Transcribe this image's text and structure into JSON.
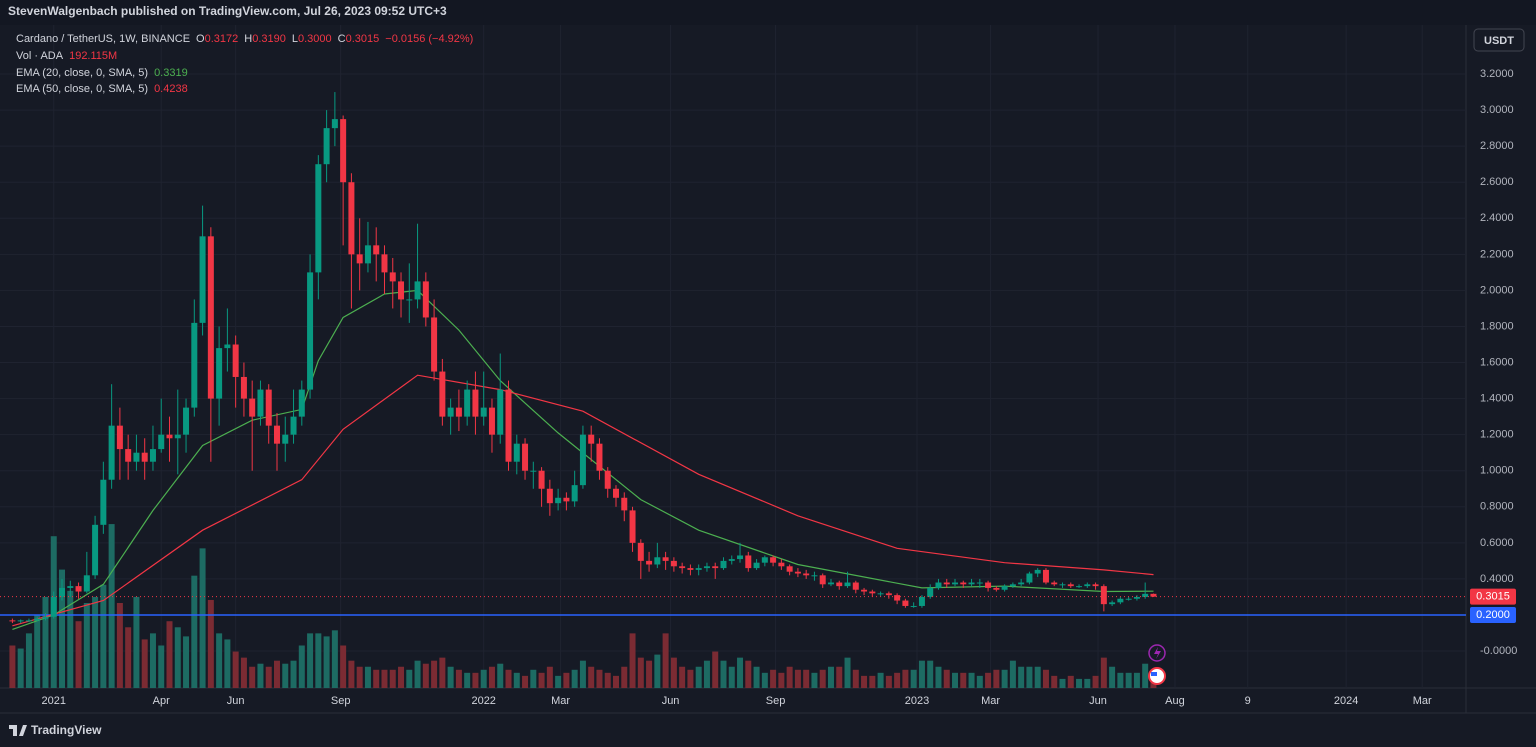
{
  "header": {
    "publisher": "StevenWalgenbach published on TradingView.com, Jul 26, 2023 09:52 UTC+3",
    "currency_button": "USDT",
    "footer_logo": "TradingView"
  },
  "chart_data": {
    "type": "candlestick",
    "legend": {
      "symbol": "Cardano / TetherUS, 1W, BINANCE",
      "ohlc": [
        {
          "key": "O",
          "value": "0.3172"
        },
        {
          "key": "H",
          "value": "0.3190"
        },
        {
          "key": "L",
          "value": "0.3000"
        },
        {
          "key": "C",
          "value": "0.3015"
        }
      ],
      "change": "−0.0156 (−4.92%)"
    },
    "up_color": "#089981",
    "down_color": "#f23645",
    "xlim": [
      -1.5,
      175.8
    ],
    "xticks": [
      {
        "value": 5,
        "label": "2021"
      },
      {
        "value": 18,
        "label": "Apr"
      },
      {
        "value": 27,
        "label": "Jun"
      },
      {
        "value": 39.7,
        "label": "Sep"
      },
      {
        "value": 57,
        "label": "2022"
      },
      {
        "value": 66.3,
        "label": "Mar"
      },
      {
        "value": 79.6,
        "label": "Jun"
      },
      {
        "value": 92.3,
        "label": "Sep"
      },
      {
        "value": 109.4,
        "label": "2023"
      },
      {
        "value": 118.3,
        "label": "Mar"
      },
      {
        "value": 131.3,
        "label": "Jun"
      },
      {
        "value": 140.6,
        "label": "Aug"
      },
      {
        "value": 149.4,
        "label": "9"
      },
      {
        "value": 161.3,
        "label": "2024"
      },
      {
        "value": 170.5,
        "label": "Mar"
      }
    ],
    "ylim": [
      -0.205,
      3.472
    ],
    "yticks": [
      {
        "value": 3.2,
        "label": "3.2000"
      },
      {
        "value": 3.0,
        "label": "3.0000"
      },
      {
        "value": 2.8,
        "label": "2.8000"
      },
      {
        "value": 2.6,
        "label": "2.6000"
      },
      {
        "value": 2.4,
        "label": "2.4000"
      },
      {
        "value": 2.2,
        "label": "2.2000"
      },
      {
        "value": 2.0,
        "label": "2.0000"
      },
      {
        "value": 1.8,
        "label": "1.8000"
      },
      {
        "value": 1.6,
        "label": "1.6000"
      },
      {
        "value": 1.4,
        "label": "1.4000"
      },
      {
        "value": 1.2,
        "label": "1.2000"
      },
      {
        "value": 1.0,
        "label": "1.0000"
      },
      {
        "value": 0.8,
        "label": "0.8000"
      },
      {
        "value": 0.6,
        "label": "0.6000"
      },
      {
        "value": 0.4,
        "label": "0.4000"
      },
      {
        "value": 0,
        "label": "-0.0000"
      }
    ],
    "grid": true,
    "hline": {
      "value": 0.2,
      "label": "0.2000",
      "color": "#2962ff"
    },
    "candles": {
      "open": [
        0.17,
        0.165,
        0.17,
        0.17,
        0.18,
        0.19,
        0.3,
        0.35,
        0.36,
        0.33,
        0.42,
        0.7,
        0.95,
        1.25,
        1.12,
        1.05,
        1.1,
        1.05,
        1.12,
        1.2,
        1.18,
        1.2,
        1.35,
        1.82,
        2.3,
        1.4,
        1.68,
        1.7,
        1.52,
        1.4,
        1.3,
        1.45,
        1.25,
        1.15,
        1.2,
        1.3,
        1.45,
        2.1,
        2.7,
        2.9,
        2.95,
        2.6,
        2.2,
        2.15,
        2.25,
        2.2,
        2.1,
        2.05,
        1.95,
        1.95,
        2.05,
        1.85,
        1.55,
        1.3,
        1.35,
        1.3,
        1.45,
        1.3,
        1.35,
        1.2,
        1.45,
        1.05,
        1.15,
        1.0,
        1.0,
        0.9,
        0.82,
        0.85,
        0.83,
        0.92,
        1.2,
        1.15,
        1.0,
        0.9,
        0.85,
        0.78,
        0.6,
        0.5,
        0.48,
        0.52,
        0.5,
        0.47,
        0.46,
        0.45,
        0.46,
        0.47,
        0.46,
        0.5,
        0.51,
        0.53,
        0.46,
        0.49,
        0.52,
        0.49,
        0.47,
        0.44,
        0.43,
        0.42,
        0.42,
        0.37,
        0.38,
        0.36,
        0.38,
        0.34,
        0.33,
        0.32,
        0.32,
        0.31,
        0.28,
        0.25,
        0.25,
        0.3,
        0.35,
        0.38,
        0.37,
        0.38,
        0.37,
        0.38,
        0.38,
        0.35,
        0.34,
        0.36,
        0.37,
        0.38,
        0.43,
        0.45,
        0.38,
        0.37,
        0.37,
        0.36,
        0.36,
        0.37,
        0.36,
        0.26,
        0.27,
        0.29,
        0.29,
        0.3,
        0.3172
      ],
      "high": [
        0.18,
        0.175,
        0.18,
        0.19,
        0.21,
        0.33,
        0.4,
        0.39,
        0.38,
        0.55,
        0.75,
        1.05,
        1.48,
        1.35,
        1.2,
        1.2,
        1.18,
        1.25,
        1.4,
        1.3,
        1.45,
        1.4,
        1.95,
        2.47,
        2.35,
        1.8,
        1.9,
        1.75,
        1.6,
        1.5,
        1.5,
        1.48,
        1.32,
        1.3,
        1.45,
        1.5,
        2.2,
        2.75,
        3.0,
        3.1,
        2.97,
        2.65,
        2.4,
        2.38,
        2.35,
        2.25,
        2.18,
        2.1,
        2.15,
        2.37,
        2.1,
        1.95,
        1.62,
        1.4,
        1.45,
        1.5,
        1.55,
        1.55,
        1.4,
        1.65,
        1.5,
        1.2,
        1.18,
        1.05,
        1.02,
        0.95,
        0.9,
        0.88,
        1.0,
        1.25,
        1.25,
        1.18,
        1.02,
        0.92,
        0.88,
        0.8,
        0.62,
        0.55,
        0.6,
        0.55,
        0.52,
        0.49,
        0.48,
        0.48,
        0.49,
        0.49,
        0.52,
        0.53,
        0.6,
        0.55,
        0.51,
        0.53,
        0.53,
        0.51,
        0.48,
        0.46,
        0.45,
        0.44,
        0.43,
        0.4,
        0.39,
        0.44,
        0.39,
        0.35,
        0.34,
        0.33,
        0.33,
        0.32,
        0.29,
        0.27,
        0.31,
        0.37,
        0.4,
        0.4,
        0.4,
        0.39,
        0.4,
        0.4,
        0.39,
        0.36,
        0.37,
        0.38,
        0.4,
        0.44,
        0.46,
        0.46,
        0.39,
        0.38,
        0.38,
        0.37,
        0.38,
        0.38,
        0.37,
        0.28,
        0.3,
        0.3,
        0.31,
        0.38,
        0.319
      ],
      "low": [
        0.155,
        0.155,
        0.16,
        0.165,
        0.17,
        0.18,
        0.28,
        0.3,
        0.29,
        0.32,
        0.4,
        0.65,
        0.9,
        0.95,
        0.95,
        1.0,
        0.95,
        1.0,
        1.1,
        1.05,
        0.98,
        1.1,
        1.3,
        1.75,
        1.05,
        1.25,
        1.55,
        1.35,
        1.3,
        1.0,
        1.25,
        1.15,
        1.0,
        1.05,
        1.15,
        1.25,
        1.4,
        1.95,
        2.6,
        2.8,
        2.25,
        1.9,
        2.0,
        2.1,
        2.05,
        1.98,
        1.9,
        1.85,
        1.82,
        1.9,
        1.8,
        1.5,
        1.25,
        1.2,
        1.22,
        1.25,
        1.2,
        1.25,
        1.1,
        1.15,
        1.0,
        0.98,
        0.95,
        0.9,
        0.8,
        0.75,
        0.78,
        0.78,
        0.8,
        0.9,
        1.05,
        0.95,
        0.85,
        0.8,
        0.72,
        0.55,
        0.4,
        0.44,
        0.46,
        0.45,
        0.44,
        0.43,
        0.42,
        0.42,
        0.44,
        0.4,
        0.45,
        0.48,
        0.49,
        0.44,
        0.45,
        0.47,
        0.47,
        0.45,
        0.42,
        0.41,
        0.4,
        0.39,
        0.35,
        0.36,
        0.34,
        0.35,
        0.32,
        0.31,
        0.3,
        0.3,
        0.29,
        0.26,
        0.24,
        0.24,
        0.24,
        0.29,
        0.34,
        0.35,
        0.36,
        0.35,
        0.36,
        0.35,
        0.33,
        0.33,
        0.33,
        0.35,
        0.36,
        0.37,
        0.41,
        0.37,
        0.36,
        0.35,
        0.35,
        0.35,
        0.35,
        0.34,
        0.22,
        0.25,
        0.26,
        0.28,
        0.28,
        0.29,
        0.3
      ],
      "close": [
        0.165,
        0.17,
        0.17,
        0.18,
        0.19,
        0.3,
        0.35,
        0.36,
        0.33,
        0.42,
        0.7,
        0.95,
        1.25,
        1.12,
        1.05,
        1.1,
        1.05,
        1.12,
        1.2,
        1.18,
        1.2,
        1.35,
        1.82,
        2.3,
        1.4,
        1.68,
        1.7,
        1.52,
        1.4,
        1.3,
        1.45,
        1.25,
        1.15,
        1.2,
        1.3,
        1.45,
        2.1,
        2.7,
        2.9,
        2.95,
        2.6,
        2.2,
        2.15,
        2.25,
        2.2,
        2.1,
        2.05,
        1.95,
        1.95,
        2.05,
        1.85,
        1.55,
        1.3,
        1.35,
        1.3,
        1.45,
        1.3,
        1.35,
        1.2,
        1.45,
        1.05,
        1.15,
        1.0,
        1.0,
        0.9,
        0.82,
        0.85,
        0.83,
        0.92,
        1.2,
        1.15,
        1.0,
        0.9,
        0.85,
        0.78,
        0.6,
        0.5,
        0.48,
        0.52,
        0.5,
        0.47,
        0.46,
        0.45,
        0.46,
        0.47,
        0.46,
        0.5,
        0.51,
        0.53,
        0.46,
        0.49,
        0.52,
        0.49,
        0.47,
        0.44,
        0.43,
        0.42,
        0.42,
        0.37,
        0.38,
        0.36,
        0.38,
        0.34,
        0.33,
        0.32,
        0.32,
        0.31,
        0.28,
        0.25,
        0.25,
        0.3,
        0.35,
        0.38,
        0.37,
        0.38,
        0.37,
        0.38,
        0.38,
        0.35,
        0.34,
        0.36,
        0.37,
        0.38,
        0.43,
        0.45,
        0.38,
        0.37,
        0.37,
        0.36,
        0.36,
        0.37,
        0.36,
        0.26,
        0.27,
        0.29,
        0.29,
        0.3,
        0.3172,
        0.3015
      ]
    },
    "volume": {
      "name": "Vol · ADA",
      "last_label": "192.115M",
      "up_color": "#1d6b63",
      "down_color": "#7b2b33",
      "vlim": [
        0,
        2800
      ],
      "values": [
        700,
        650,
        900,
        1200,
        1500,
        2500,
        1950,
        1600,
        1100,
        1400,
        1500,
        1700,
        2700,
        1400,
        1000,
        1500,
        800,
        900,
        700,
        1100,
        1000,
        850,
        1850,
        2300,
        1450,
        900,
        800,
        600,
        500,
        350,
        400,
        350,
        450,
        400,
        450,
        700,
        900,
        900,
        850,
        950,
        700,
        450,
        350,
        350,
        300,
        300,
        300,
        350,
        300,
        450,
        400,
        450,
        500,
        350,
        300,
        250,
        250,
        300,
        350,
        400,
        300,
        250,
        200,
        300,
        250,
        350,
        200,
        250,
        300,
        450,
        350,
        300,
        250,
        200,
        350,
        900,
        500,
        450,
        550,
        900,
        500,
        350,
        300,
        350,
        450,
        600,
        450,
        350,
        500,
        450,
        350,
        250,
        300,
        250,
        350,
        300,
        300,
        250,
        300,
        350,
        350,
        500,
        300,
        200,
        200,
        250,
        200,
        250,
        300,
        300,
        450,
        450,
        350,
        300,
        250,
        250,
        250,
        200,
        250,
        300,
        300,
        450,
        350,
        350,
        350,
        300,
        200,
        150,
        200,
        150,
        150,
        200,
        500,
        350,
        250,
        250,
        250,
        400,
        192.115
      ]
    },
    "ema20": {
      "name": "EMA (20, close, 0, SMA, 5)",
      "color": "#4caf50",
      "x": [
        0,
        5,
        11,
        17,
        23,
        29,
        35,
        37,
        40,
        45,
        49,
        54,
        59,
        66,
        76,
        83,
        95,
        110,
        120,
        132,
        138
      ],
      "values": [
        0.12,
        0.2,
        0.37,
        0.78,
        1.14,
        1.28,
        1.34,
        1.61,
        1.85,
        1.98,
        2.0,
        1.78,
        1.5,
        1.21,
        0.84,
        0.67,
        0.48,
        0.35,
        0.36,
        0.33,
        0.3319
      ]
    },
    "ema50": {
      "name": "EMA (50, close, 0, SMA, 5)",
      "color": "#f23645",
      "x": [
        0,
        11,
        23,
        35,
        40,
        49,
        59,
        69,
        83,
        95,
        107,
        120,
        132,
        138
      ],
      "values": [
        0.14,
        0.28,
        0.67,
        0.95,
        1.23,
        1.53,
        1.45,
        1.33,
        0.98,
        0.75,
        0.57,
        0.49,
        0.45,
        0.4238
      ]
    }
  }
}
